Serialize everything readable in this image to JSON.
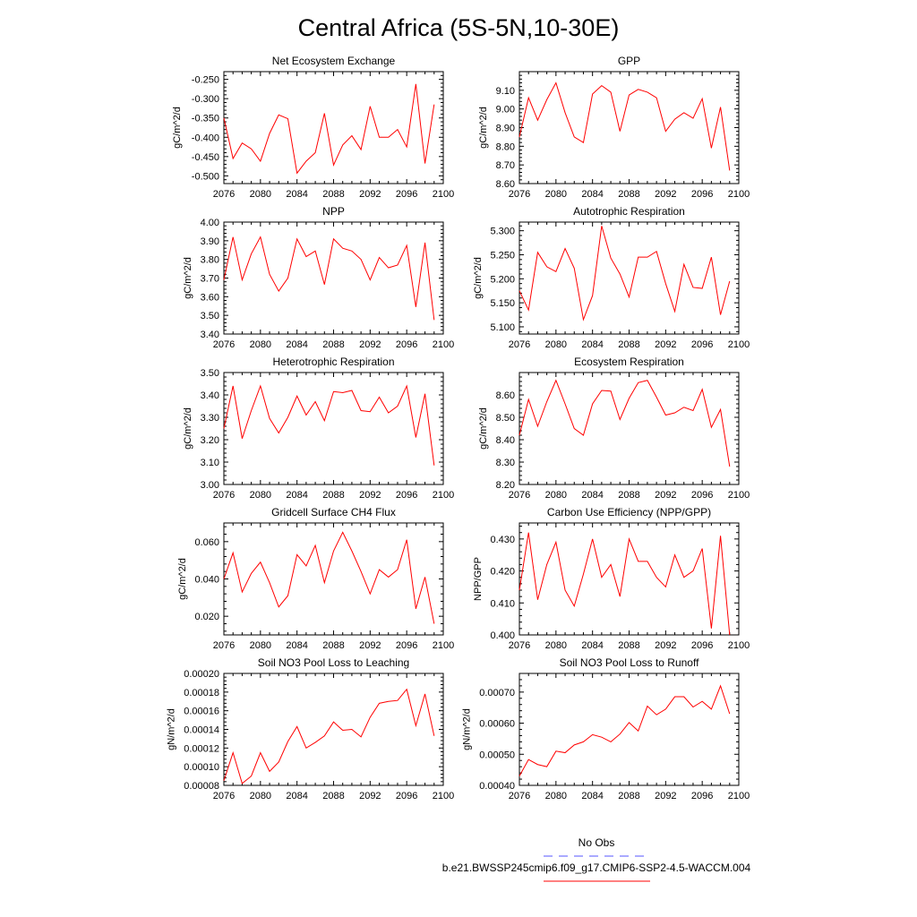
{
  "figure": {
    "title": "Central Africa (5S-5N,10-30E)",
    "legend": [
      {
        "label": "No Obs",
        "color": "#5555ff",
        "dash": "dashed"
      },
      {
        "label": "b.e21.BWSSP245cmip6.f09_g17.CMIP6-SSP2-4.5-WACCM.004",
        "color": "#ff0000",
        "dash": "solid"
      }
    ]
  },
  "chart_data": [
    {
      "type": "line",
      "title": "Net Ecosystem Exchange",
      "ylabel": "gC/m^2/d",
      "x": [
        2076,
        2077,
        2078,
        2079,
        2080,
        2081,
        2082,
        2083,
        2084,
        2085,
        2086,
        2087,
        2088,
        2089,
        2090,
        2091,
        2092,
        2093,
        2094,
        2095,
        2096,
        2097,
        2098,
        2099
      ],
      "series": [
        {
          "color": "#ff0000",
          "values": [
            -0.35,
            -0.455,
            -0.415,
            -0.43,
            -0.462,
            -0.39,
            -0.342,
            -0.352,
            -0.493,
            -0.462,
            -0.44,
            -0.338,
            -0.472,
            -0.42,
            -0.396,
            -0.432,
            -0.32,
            -0.4,
            -0.4,
            -0.38,
            -0.425,
            -0.262,
            -0.468,
            -0.315
          ]
        }
      ],
      "xlim": [
        2076,
        2100
      ],
      "ylim": [
        -0.52,
        -0.23
      ],
      "xticks": [
        "2076",
        "2080",
        "2084",
        "2088",
        "2092",
        "2096",
        "2100"
      ],
      "yticks": [
        "-0.250",
        "-0.300",
        "-0.350",
        "-0.400",
        "-0.450",
        "-0.500"
      ]
    },
    {
      "type": "line",
      "title": "GPP",
      "ylabel": "gC/m^2/d",
      "x": [
        2076,
        2077,
        2078,
        2079,
        2080,
        2081,
        2082,
        2083,
        2084,
        2085,
        2086,
        2087,
        2088,
        2089,
        2090,
        2091,
        2092,
        2093,
        2094,
        2095,
        2096,
        2097,
        2098,
        2099
      ],
      "series": [
        {
          "color": "#ff0000",
          "values": [
            8.85,
            9.06,
            8.94,
            9.05,
            9.14,
            8.98,
            8.85,
            8.82,
            9.08,
            9.125,
            9.09,
            8.88,
            9.075,
            9.105,
            9.09,
            9.06,
            8.88,
            8.945,
            8.98,
            8.95,
            9.055,
            8.79,
            9.01,
            8.67
          ]
        }
      ],
      "xlim": [
        2076,
        2100
      ],
      "ylim": [
        8.6,
        9.2
      ],
      "xticks": [
        "2076",
        "2080",
        "2084",
        "2088",
        "2092",
        "2096",
        "2100"
      ],
      "yticks": [
        "9.10",
        "9.00",
        "8.90",
        "8.80",
        "8.70",
        "8.60"
      ]
    },
    {
      "type": "line",
      "title": "NPP",
      "ylabel": "gC/m^2/d",
      "x": [
        2076,
        2077,
        2078,
        2079,
        2080,
        2081,
        2082,
        2083,
        2084,
        2085,
        2086,
        2087,
        2088,
        2089,
        2090,
        2091,
        2092,
        2093,
        2094,
        2095,
        2096,
        2097,
        2098,
        2099
      ],
      "series": [
        {
          "color": "#ff0000",
          "values": [
            3.69,
            3.92,
            3.69,
            3.83,
            3.92,
            3.72,
            3.63,
            3.7,
            3.91,
            3.815,
            3.845,
            3.665,
            3.91,
            3.86,
            3.845,
            3.8,
            3.69,
            3.81,
            3.755,
            3.77,
            3.875,
            3.545,
            3.89,
            3.475
          ]
        }
      ],
      "xlim": [
        2076,
        2100
      ],
      "ylim": [
        3.4,
        4.0
      ],
      "xticks": [
        "2076",
        "2080",
        "2084",
        "2088",
        "2092",
        "2096",
        "2100"
      ],
      "yticks": [
        "4.00",
        "3.90",
        "3.80",
        "3.70",
        "3.60",
        "3.50",
        "3.40"
      ]
    },
    {
      "type": "line",
      "title": "Autotrophic Respiration",
      "ylabel": "gC/m^2/d",
      "x": [
        2076,
        2077,
        2078,
        2079,
        2080,
        2081,
        2082,
        2083,
        2084,
        2085,
        2086,
        2087,
        2088,
        2089,
        2090,
        2091,
        2092,
        2093,
        2094,
        2095,
        2096,
        2097,
        2098,
        2099
      ],
      "series": [
        {
          "color": "#ff0000",
          "values": [
            5.175,
            5.135,
            5.255,
            5.225,
            5.215,
            5.263,
            5.222,
            5.115,
            5.165,
            5.31,
            5.243,
            5.21,
            5.162,
            5.245,
            5.245,
            5.257,
            5.19,
            5.132,
            5.23,
            5.182,
            5.18,
            5.245,
            5.125,
            5.195
          ]
        }
      ],
      "xlim": [
        2076,
        2100
      ],
      "ylim": [
        5.085,
        5.318
      ],
      "xticks": [
        "2076",
        "2080",
        "2084",
        "2088",
        "2092",
        "2096",
        "2100"
      ],
      "yticks": [
        "5.300",
        "5.250",
        "5.200",
        "5.150",
        "5.100"
      ]
    },
    {
      "type": "line",
      "title": "Heterotrophic Respiration",
      "ylabel": "gC/m^2/d",
      "x": [
        2076,
        2077,
        2078,
        2079,
        2080,
        2081,
        2082,
        2083,
        2084,
        2085,
        2086,
        2087,
        2088,
        2089,
        2090,
        2091,
        2092,
        2093,
        2094,
        2095,
        2096,
        2097,
        2098,
        2099
      ],
      "series": [
        {
          "color": "#ff0000",
          "values": [
            3.25,
            3.44,
            3.205,
            3.33,
            3.44,
            3.295,
            3.23,
            3.3,
            3.395,
            3.31,
            3.37,
            3.285,
            3.415,
            3.41,
            3.42,
            3.33,
            3.325,
            3.39,
            3.32,
            3.35,
            3.44,
            3.21,
            3.405,
            3.085
          ]
        }
      ],
      "xlim": [
        2076,
        2100
      ],
      "ylim": [
        3.0,
        3.5
      ],
      "xticks": [
        "2076",
        "2080",
        "2084",
        "2088",
        "2092",
        "2096",
        "2100"
      ],
      "yticks": [
        "3.50",
        "3.40",
        "3.30",
        "3.20",
        "3.10",
        "3.00"
      ]
    },
    {
      "type": "line",
      "title": "Ecosystem Respiration",
      "ylabel": "gC/m^2/d",
      "x": [
        2076,
        2077,
        2078,
        2079,
        2080,
        2081,
        2082,
        2083,
        2084,
        2085,
        2086,
        2087,
        2088,
        2089,
        2090,
        2091,
        2092,
        2093,
        2094,
        2095,
        2096,
        2097,
        2098,
        2099
      ],
      "series": [
        {
          "color": "#ff0000",
          "values": [
            8.42,
            8.58,
            8.46,
            8.57,
            8.665,
            8.56,
            8.45,
            8.42,
            8.56,
            8.62,
            8.617,
            8.49,
            8.585,
            8.655,
            8.665,
            8.59,
            8.51,
            8.52,
            8.545,
            8.53,
            8.625,
            8.455,
            8.535,
            8.28
          ]
        }
      ],
      "xlim": [
        2076,
        2100
      ],
      "ylim": [
        8.2,
        8.7
      ],
      "xticks": [
        "2076",
        "2080",
        "2084",
        "2088",
        "2092",
        "2096",
        "2100"
      ],
      "yticks": [
        "8.60",
        "8.50",
        "8.40",
        "8.30",
        "8.20"
      ]
    },
    {
      "type": "line",
      "title": "Gridcell Surface CH4 Flux",
      "ylabel": "gC/m^2/d",
      "x": [
        2076,
        2077,
        2078,
        2079,
        2080,
        2081,
        2082,
        2083,
        2084,
        2085,
        2086,
        2087,
        2088,
        2089,
        2090,
        2091,
        2092,
        2093,
        2094,
        2095,
        2096,
        2097,
        2098,
        2099
      ],
      "series": [
        {
          "color": "#ff0000",
          "values": [
            0.04,
            0.054,
            0.033,
            0.043,
            0.049,
            0.038,
            0.025,
            0.031,
            0.053,
            0.047,
            0.058,
            0.038,
            0.055,
            0.065,
            0.055,
            0.044,
            0.032,
            0.045,
            0.041,
            0.045,
            0.061,
            0.024,
            0.041,
            0.016
          ]
        }
      ],
      "xlim": [
        2076,
        2100
      ],
      "ylim": [
        0.01,
        0.07
      ],
      "xticks": [
        "2076",
        "2080",
        "2084",
        "2088",
        "2092",
        "2096",
        "2100"
      ],
      "yticks": [
        "0.060",
        "0.040",
        "0.020"
      ]
    },
    {
      "type": "line",
      "title": "Carbon Use Efficiency (NPP/GPP)",
      "ylabel": "NPP/GPP",
      "x": [
        2076,
        2077,
        2078,
        2079,
        2080,
        2081,
        2082,
        2083,
        2084,
        2085,
        2086,
        2087,
        2088,
        2089,
        2090,
        2091,
        2092,
        2093,
        2094,
        2095,
        2096,
        2097,
        2098,
        2099
      ],
      "series": [
        {
          "color": "#ff0000",
          "values": [
            0.414,
            0.432,
            0.411,
            0.422,
            0.429,
            0.414,
            0.409,
            0.419,
            0.43,
            0.418,
            0.422,
            0.412,
            0.43,
            0.423,
            0.423,
            0.418,
            0.415,
            0.425,
            0.418,
            0.42,
            0.427,
            0.402,
            0.431,
            0.4
          ]
        }
      ],
      "xlim": [
        2076,
        2100
      ],
      "ylim": [
        0.4,
        0.435
      ],
      "xticks": [
        "2076",
        "2080",
        "2084",
        "2088",
        "2092",
        "2096",
        "2100"
      ],
      "yticks": [
        "0.430",
        "0.420",
        "0.410",
        "0.400"
      ]
    },
    {
      "type": "line",
      "title": "Soil NO3 Pool Loss to Leaching",
      "ylabel": "gN/m^2/d",
      "x": [
        2076,
        2077,
        2078,
        2079,
        2080,
        2081,
        2082,
        2083,
        2084,
        2085,
        2086,
        2087,
        2088,
        2089,
        2090,
        2091,
        2092,
        2093,
        2094,
        2095,
        2096,
        2097,
        2098,
        2099
      ],
      "series": [
        {
          "color": "#ff0000",
          "values": [
            8.5e-05,
            0.000115,
            8.2e-05,
            9e-05,
            0.000115,
            9.5e-05,
            0.000105,
            0.000127,
            0.000143,
            0.00012,
            0.000126,
            0.000133,
            0.000148,
            0.000139,
            0.00014,
            0.000132,
            0.000153,
            0.000168,
            0.00017,
            0.000171,
            0.000183,
            0.000144,
            0.000178,
            0.000133
          ]
        }
      ],
      "xlim": [
        2076,
        2100
      ],
      "ylim": [
        8e-05,
        0.0002
      ],
      "xticks": [
        "2076",
        "2080",
        "2084",
        "2088",
        "2092",
        "2096",
        "2100"
      ],
      "yticks": [
        "0.00020",
        "0.00018",
        "0.00016",
        "0.00014",
        "0.00012",
        "0.00010",
        "0.00008"
      ]
    },
    {
      "type": "line",
      "title": "Soil NO3 Pool Loss to Runoff",
      "ylabel": "gN/m^2/d",
      "x": [
        2076,
        2077,
        2078,
        2079,
        2080,
        2081,
        2082,
        2083,
        2084,
        2085,
        2086,
        2087,
        2088,
        2089,
        2090,
        2091,
        2092,
        2093,
        2094,
        2095,
        2096,
        2097,
        2098,
        2099
      ],
      "series": [
        {
          "color": "#ff0000",
          "values": [
            0.00043,
            0.000483,
            0.000467,
            0.00046,
            0.00051,
            0.000505,
            0.00053,
            0.00054,
            0.000563,
            0.000555,
            0.00054,
            0.000565,
            0.000602,
            0.000575,
            0.000655,
            0.000627,
            0.000645,
            0.000685,
            0.000685,
            0.000652,
            0.00067,
            0.000645,
            0.00072,
            0.00063
          ]
        }
      ],
      "xlim": [
        2076,
        2100
      ],
      "ylim": [
        0.0004,
        0.00076
      ],
      "xticks": [
        "2076",
        "2080",
        "2084",
        "2088",
        "2092",
        "2096",
        "2100"
      ],
      "yticks": [
        "0.00070",
        "0.00060",
        "0.00050",
        "0.00040"
      ]
    }
  ]
}
